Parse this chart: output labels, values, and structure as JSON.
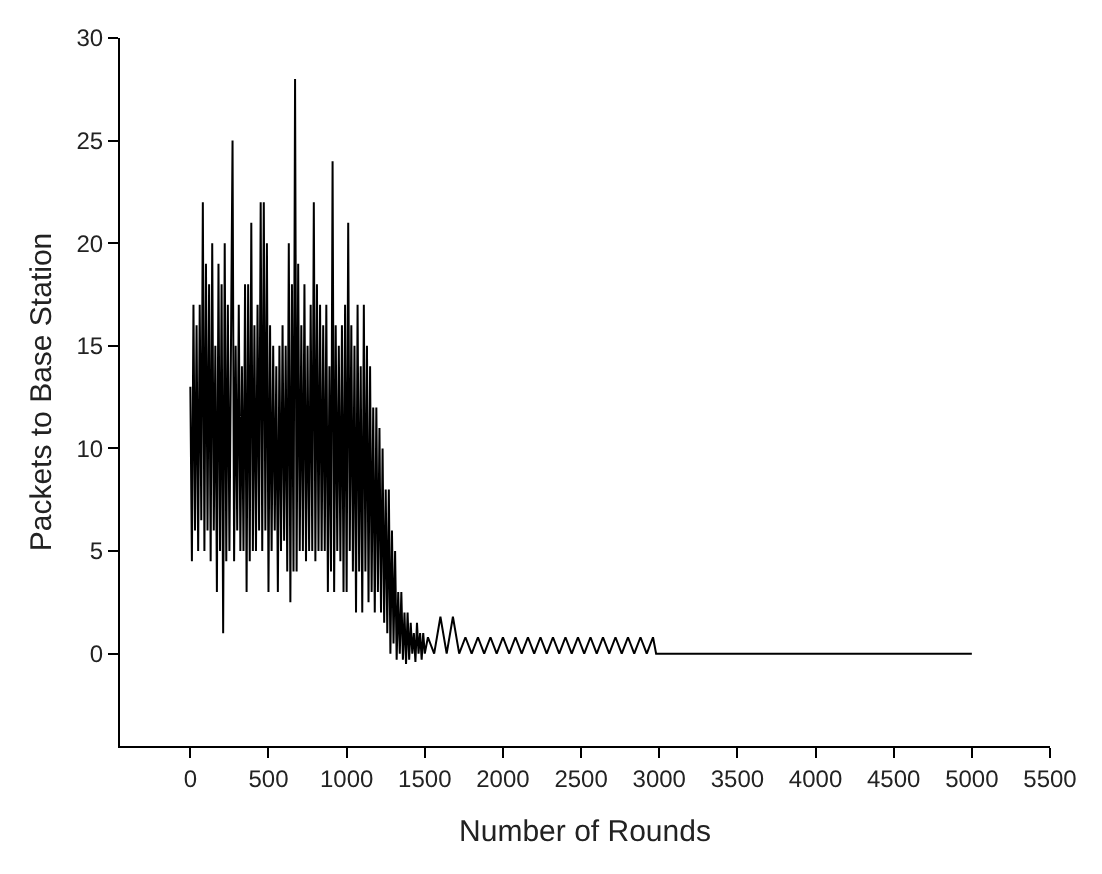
{
  "chart_data": {
    "type": "line",
    "xlabel": "Number of Rounds",
    "ylabel": "Packets to Base Station",
    "xlim": [
      -450,
      5500
    ],
    "xticks": [
      0,
      500,
      1000,
      1500,
      2000,
      2500,
      3000,
      3500,
      4000,
      4500,
      5000,
      5500
    ],
    "ylim": [
      -4.5,
      30
    ],
    "yticks": [
      0,
      5,
      10,
      15,
      20,
      25,
      30
    ],
    "grid": false,
    "marker": "none",
    "line_style": "solid",
    "series": [
      {
        "color": "#000000",
        "x": [
          0,
          10,
          20,
          30,
          40,
          50,
          60,
          70,
          80,
          90,
          100,
          110,
          120,
          130,
          140,
          150,
          160,
          170,
          180,
          190,
          200,
          210,
          220,
          230,
          240,
          250,
          260,
          270,
          280,
          290,
          300,
          310,
          320,
          330,
          340,
          350,
          360,
          370,
          380,
          390,
          400,
          410,
          420,
          430,
          440,
          450,
          460,
          470,
          480,
          490,
          500,
          510,
          520,
          530,
          540,
          550,
          560,
          570,
          580,
          590,
          600,
          610,
          620,
          630,
          640,
          650,
          660,
          670,
          680,
          690,
          700,
          710,
          720,
          730,
          740,
          750,
          760,
          770,
          780,
          790,
          800,
          810,
          820,
          830,
          840,
          850,
          860,
          870,
          880,
          890,
          900,
          910,
          920,
          930,
          940,
          950,
          960,
          970,
          980,
          990,
          1000,
          1010,
          1020,
          1030,
          1040,
          1050,
          1060,
          1070,
          1080,
          1090,
          1100,
          1110,
          1120,
          1130,
          1140,
          1150,
          1160,
          1170,
          1180,
          1190,
          1200,
          1210,
          1220,
          1230,
          1240,
          1250,
          1260,
          1270,
          1280,
          1290,
          1300,
          1310,
          1320,
          1330,
          1340,
          1350,
          1360,
          1370,
          1380,
          1390,
          1400,
          1410,
          1420,
          1430,
          1440,
          1450,
          1460,
          1470,
          1480,
          1490,
          1500,
          1520,
          1560,
          1600,
          1640,
          1680,
          1720,
          1760,
          1800,
          1840,
          1880,
          1920,
          1960,
          2000,
          2040,
          2080,
          2120,
          2160,
          2200,
          2240,
          2280,
          2320,
          2360,
          2400,
          2440,
          2480,
          2520,
          2560,
          2600,
          2640,
          2680,
          2720,
          2760,
          2800,
          2840,
          2880,
          2920,
          2960,
          2980,
          5000
        ],
        "values": [
          13,
          4.5,
          17,
          6,
          16,
          5,
          17,
          6.5,
          22,
          5,
          19,
          6,
          18,
          4.5,
          20,
          6,
          15,
          3,
          19,
          5,
          18,
          1,
          20,
          4.5,
          17,
          5,
          15,
          25,
          4.5,
          15,
          6,
          17,
          5,
          14,
          5,
          18,
          3,
          18,
          4.5,
          21,
          5,
          16,
          5,
          17,
          6,
          22,
          5,
          22,
          6,
          20,
          3,
          16,
          5,
          15,
          6,
          14,
          3,
          15,
          5,
          16,
          5.5,
          15,
          4,
          20,
          2.5,
          18,
          4,
          28,
          4,
          19,
          5,
          16,
          5,
          18,
          4.5,
          15,
          5,
          17,
          5,
          22,
          4.5,
          18,
          5,
          17,
          5,
          16,
          5,
          17,
          3,
          14,
          4,
          24,
          3,
          16,
          5,
          15,
          4.5,
          16,
          3,
          17,
          3,
          21,
          5,
          16,
          4,
          15,
          2,
          17,
          4,
          14,
          2,
          17,
          4,
          15,
          2.5,
          14,
          3,
          12,
          2,
          12,
          3,
          11,
          2,
          10,
          1.5,
          8,
          1,
          8,
          0,
          6,
          0.5,
          5,
          -0.3,
          3,
          0,
          3,
          -0.3,
          2,
          -0.5,
          2,
          -0.3,
          1.5,
          0,
          1,
          -0.4,
          1.5,
          0,
          1,
          -0.3,
          1,
          0,
          0.8,
          0,
          1.8,
          0,
          1.8,
          0,
          0.8,
          0,
          0.8,
          0,
          0.8,
          0,
          0.8,
          0,
          0.8,
          0,
          0.8,
          0,
          0.8,
          0,
          0.8,
          0,
          0.8,
          0,
          0.8,
          0,
          0.8,
          0,
          0.8,
          0,
          0.8,
          0,
          0.8,
          0,
          0.8,
          0,
          0.8,
          0,
          0
        ]
      }
    ]
  }
}
